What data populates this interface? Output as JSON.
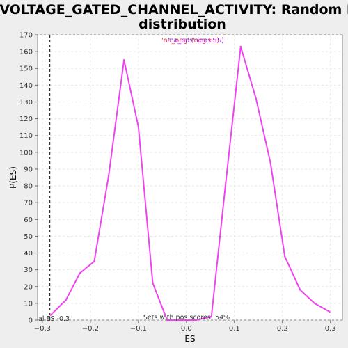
{
  "chart_data": {
    "type": "line",
    "title_line1": "VOLTAGE_GATED_CHANNEL_ACTIVITY: Random ES",
    "title_line2": "distribution",
    "xlabel": "ES",
    "ylabel": "P(ES)",
    "xlim": [
      -0.31,
      0.325
    ],
    "ylim": [
      0,
      170
    ],
    "xticks": [
      -0.3,
      -0.2,
      -0.1,
      0,
      0.1,
      0.2,
      0.3
    ],
    "xtick_labels": [
      "−0.3",
      "−0.2",
      "−0.1",
      "0.0",
      "0.1",
      "0.2",
      "0.3"
    ],
    "yticks": [
      0,
      10,
      20,
      30,
      40,
      50,
      60,
      70,
      80,
      90,
      100,
      110,
      120,
      130,
      140,
      150,
      160,
      170
    ],
    "grid": true,
    "legend": {
      "placement": "top-center",
      "entries": [
        {
          "name": "'na_neg' (neg ES)",
          "color": "#e0344a"
        },
        {
          "name": "'na_pos' (pos ES)",
          "color": "#8a2be2"
        }
      ]
    },
    "series": [
      {
        "color": "#ee44ee",
        "x": [
          -0.283,
          -0.251,
          -0.222,
          -0.192,
          -0.162,
          -0.13,
          -0.1,
          -0.07,
          -0.04,
          -0.01,
          0.02,
          0.052,
          0.082,
          0.113,
          0.145,
          0.175,
          0.205,
          0.237,
          0.267,
          0.298
        ],
        "y": [
          3,
          12,
          28,
          35,
          86,
          155,
          115,
          22,
          0,
          0,
          0,
          2,
          82,
          163,
          132,
          94,
          38,
          18,
          10,
          5
        ]
      }
    ],
    "vline": {
      "x": -0.285,
      "label": "al ES -0.3",
      "style": "dashed",
      "color": "#333333"
    },
    "annotation": "Sets with pos scores: 54%"
  }
}
